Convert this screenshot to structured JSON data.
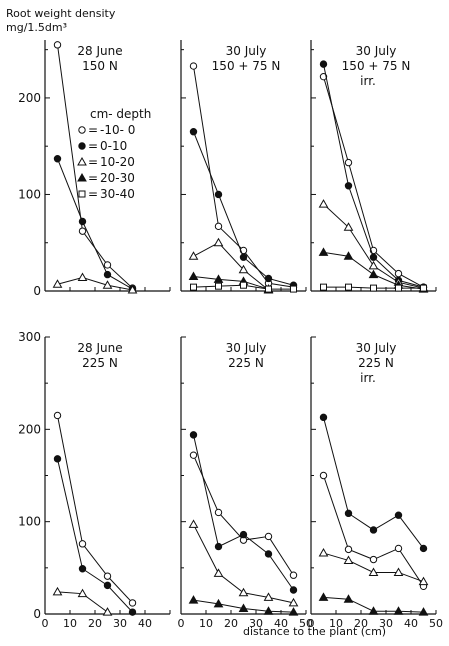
{
  "figure": {
    "ylabel_line1": "Root weight density",
    "ylabel_line2": "mg/1.5dm³",
    "xlabel": "distance to the plant (cm)"
  },
  "legend": {
    "title": "cm- depth",
    "entries": [
      {
        "label": "-10- 0",
        "marker": "open-circle"
      },
      {
        "label": "0-10",
        "marker": "filled-circle"
      },
      {
        "label": "10-20",
        "marker": "open-triangle"
      },
      {
        "label": "20-30",
        "marker": "filled-triangle"
      },
      {
        "label": "30-40",
        "marker": "open-square"
      }
    ]
  },
  "chart_data": [
    {
      "type": "line",
      "row": 1,
      "col": 1,
      "title": [
        "28 June",
        "150 N"
      ],
      "xlim": [
        0,
        50
      ],
      "ylim": [
        0,
        260
      ],
      "yticks": [
        0,
        100,
        200
      ],
      "xticks": [],
      "series": [
        {
          "name": "-10- 0",
          "marker": "open-circle",
          "x": [
            5,
            15,
            25,
            35
          ],
          "y": [
            255,
            62,
            27,
            3
          ]
        },
        {
          "name": "0-10",
          "marker": "filled-circle",
          "x": [
            5,
            15,
            25,
            35
          ],
          "y": [
            137,
            72,
            17,
            2
          ]
        },
        {
          "name": "10-20",
          "marker": "open-triangle",
          "x": [
            5,
            15,
            25,
            35
          ],
          "y": [
            7,
            14,
            6,
            1
          ]
        }
      ]
    },
    {
      "type": "line",
      "row": 1,
      "col": 2,
      "title": [
        "30 July",
        "150 + 75 N"
      ],
      "xlim": [
        0,
        50
      ],
      "ylim": [
        0,
        260
      ],
      "yticks": [],
      "xticks": [],
      "series": [
        {
          "name": "-10- 0",
          "marker": "open-circle",
          "x": [
            5,
            15,
            25,
            35,
            45
          ],
          "y": [
            233,
            67,
            42,
            8,
            4
          ]
        },
        {
          "name": "0-10",
          "marker": "filled-circle",
          "x": [
            5,
            15,
            25,
            35,
            45
          ],
          "y": [
            165,
            100,
            35,
            13,
            6
          ]
        },
        {
          "name": "10-20",
          "marker": "open-triangle",
          "x": [
            5,
            15,
            25,
            35
          ],
          "y": [
            36,
            50,
            22,
            1
          ]
        },
        {
          "name": "20-30",
          "marker": "filled-triangle",
          "x": [
            5,
            15,
            25,
            35
          ],
          "y": [
            15,
            12,
            10,
            2
          ]
        },
        {
          "name": "30-40",
          "marker": "open-square",
          "x": [
            5,
            15,
            25,
            35,
            45
          ],
          "y": [
            4,
            5,
            6,
            2,
            2
          ]
        }
      ]
    },
    {
      "type": "line",
      "row": 1,
      "col": 3,
      "title": [
        "30 July",
        "150 + 75 N",
        "irr."
      ],
      "xlim": [
        0,
        50
      ],
      "ylim": [
        0,
        260
      ],
      "yticks": [],
      "xticks": [],
      "series": [
        {
          "name": "-10- 0",
          "marker": "open-circle",
          "x": [
            5,
            15,
            25,
            35,
            45
          ],
          "y": [
            222,
            133,
            42,
            18,
            4
          ]
        },
        {
          "name": "0-10",
          "marker": "filled-circle",
          "x": [
            5,
            15,
            25,
            35,
            45
          ],
          "y": [
            235,
            109,
            35,
            11,
            4
          ]
        },
        {
          "name": "10-20",
          "marker": "open-triangle",
          "x": [
            5,
            15,
            25,
            35,
            45
          ],
          "y": [
            90,
            66,
            26,
            9,
            3
          ]
        },
        {
          "name": "20-30",
          "marker": "filled-triangle",
          "x": [
            5,
            15,
            25,
            35,
            45
          ],
          "y": [
            40,
            36,
            17,
            6,
            2
          ]
        },
        {
          "name": "30-40",
          "marker": "open-square",
          "x": [
            5,
            15,
            25,
            35,
            45
          ],
          "y": [
            4,
            4,
            3,
            3,
            3
          ]
        }
      ]
    },
    {
      "type": "line",
      "row": 2,
      "col": 1,
      "title": [
        "28 June",
        "225 N"
      ],
      "xlim": [
        0,
        50
      ],
      "ylim": [
        0,
        300
      ],
      "yticks": [
        0,
        100,
        200,
        300
      ],
      "xticks": [
        0,
        10,
        20,
        30,
        40
      ],
      "series": [
        {
          "name": "-10- 0",
          "marker": "open-circle",
          "x": [
            5,
            15,
            25,
            35
          ],
          "y": [
            215,
            76,
            41,
            12
          ]
        },
        {
          "name": "0-10",
          "marker": "filled-circle",
          "x": [
            5,
            15,
            25,
            35
          ],
          "y": [
            168,
            49,
            31,
            2
          ]
        },
        {
          "name": "10-20",
          "marker": "open-triangle",
          "x": [
            5,
            15,
            25
          ],
          "y": [
            24,
            22,
            2
          ]
        }
      ]
    },
    {
      "type": "line",
      "row": 2,
      "col": 2,
      "title": [
        "30 July",
        "225 N"
      ],
      "xlim": [
        0,
        50
      ],
      "ylim": [
        0,
        300
      ],
      "yticks": [],
      "xticks": [
        0,
        10,
        20,
        30,
        40,
        50
      ],
      "series": [
        {
          "name": "-10- 0",
          "marker": "open-circle",
          "x": [
            5,
            15,
            25,
            35,
            45
          ],
          "y": [
            172,
            110,
            80,
            84,
            42
          ]
        },
        {
          "name": "0-10",
          "marker": "filled-circle",
          "x": [
            5,
            15,
            25,
            35,
            45
          ],
          "y": [
            194,
            73,
            86,
            65,
            26
          ]
        },
        {
          "name": "10-20",
          "marker": "open-triangle",
          "x": [
            5,
            15,
            25,
            35,
            45
          ],
          "y": [
            97,
            44,
            23,
            18,
            12
          ]
        },
        {
          "name": "20-30",
          "marker": "filled-triangle",
          "x": [
            5,
            15,
            25,
            35,
            45
          ],
          "y": [
            15,
            11,
            6,
            3,
            2
          ]
        }
      ]
    },
    {
      "type": "line",
      "row": 2,
      "col": 3,
      "title": [
        "30 July",
        "225 N",
        "irr."
      ],
      "xlim": [
        0,
        50
      ],
      "ylim": [
        0,
        300
      ],
      "yticks": [],
      "xticks": [
        0,
        10,
        20,
        30,
        40,
        50
      ],
      "series": [
        {
          "name": "-10- 0",
          "marker": "open-circle",
          "x": [
            5,
            15,
            25,
            35,
            45
          ],
          "y": [
            150,
            70,
            59,
            71,
            30
          ]
        },
        {
          "name": "0-10",
          "marker": "filled-circle",
          "x": [
            5,
            15,
            25,
            35,
            45
          ],
          "y": [
            213,
            109,
            91,
            107,
            71
          ]
        },
        {
          "name": "10-20",
          "marker": "open-triangle",
          "x": [
            5,
            15,
            25,
            35,
            45
          ],
          "y": [
            66,
            58,
            45,
            45,
            35
          ]
        },
        {
          "name": "20-30",
          "marker": "filled-triangle",
          "x": [
            5,
            15,
            25,
            35,
            45
          ],
          "y": [
            18,
            16,
            3,
            3,
            2
          ]
        }
      ]
    }
  ]
}
